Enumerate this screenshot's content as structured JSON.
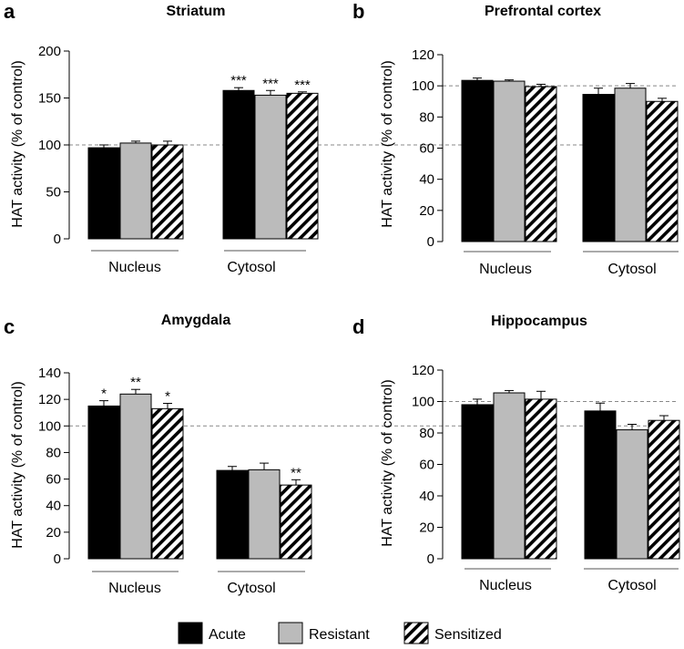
{
  "legend": {
    "items": [
      {
        "label": "Acute",
        "fill": "#000000",
        "pattern": false
      },
      {
        "label": "Resistant",
        "fill": "#bbbbbb",
        "pattern": false
      },
      {
        "label": "Sensitized",
        "fill": "#ffffff",
        "pattern": true
      }
    ]
  },
  "chart_data": [
    {
      "type": "bar",
      "letter": "a",
      "title": "Striatum",
      "ylabel": "HAT activity (% of control)",
      "ylim": [
        0,
        200
      ],
      "yticks": [
        0,
        50,
        100,
        150,
        200
      ],
      "reference_line": 100,
      "categories": [
        "Nucleus",
        "Cytosol"
      ],
      "series": [
        {
          "name": "Acute",
          "values": [
            97,
            158
          ],
          "errors": [
            3,
            3
          ],
          "sig": [
            "",
            "***"
          ]
        },
        {
          "name": "Resistant",
          "values": [
            102,
            153
          ],
          "errors": [
            2,
            5
          ],
          "sig": [
            "",
            "***"
          ]
        },
        {
          "name": "Sensitized",
          "values": [
            100,
            155
          ],
          "errors": [
            4,
            1.5
          ],
          "sig": [
            "",
            "***"
          ]
        }
      ]
    },
    {
      "type": "bar",
      "letter": "b",
      "title": "Prefrontal cortex",
      "ylabel": "HAT activity (% of control)",
      "ylim": [
        0,
        120
      ],
      "yticks": [
        0,
        20,
        40,
        60,
        80,
        100,
        120
      ],
      "reference_line": 100,
      "categories": [
        "Nucleus",
        "Cytosol"
      ],
      "series": [
        {
          "name": "Acute",
          "values": [
            103.5,
            94.5
          ],
          "errors": [
            1.5,
            4
          ],
          "sig": [
            "",
            ""
          ]
        },
        {
          "name": "Resistant",
          "values": [
            103,
            98.5
          ],
          "errors": [
            0.8,
            3
          ],
          "sig": [
            "",
            ""
          ]
        },
        {
          "name": "Sensitized",
          "values": [
            99.5,
            90
          ],
          "errors": [
            1.5,
            2
          ],
          "sig": [
            "",
            ""
          ]
        }
      ]
    },
    {
      "type": "bar",
      "letter": "c",
      "title": "Amygdala",
      "ylabel": "HAT activity (% of control)",
      "ylim": [
        0,
        140
      ],
      "yticks": [
        0,
        20,
        40,
        60,
        80,
        100,
        120,
        140
      ],
      "reference_line": 100,
      "categories": [
        "Nucleus",
        "Cytosol"
      ],
      "series": [
        {
          "name": "Acute",
          "values": [
            115,
            66.5
          ],
          "errors": [
            4,
            3
          ],
          "sig": [
            "*",
            ""
          ]
        },
        {
          "name": "Resistant",
          "values": [
            124,
            67
          ],
          "errors": [
            3.5,
            5
          ],
          "sig": [
            "**",
            ""
          ]
        },
        {
          "name": "Sensitized",
          "values": [
            113,
            55.5
          ],
          "errors": [
            4,
            4
          ],
          "sig": [
            "*",
            "**"
          ]
        }
      ]
    },
    {
      "type": "bar",
      "letter": "d",
      "title": "Hippocampus",
      "ylabel": "HAT activity (% of control)",
      "ylim": [
        0,
        120
      ],
      "yticks": [
        0,
        20,
        40,
        60,
        80,
        100,
        120
      ],
      "reference_line": 100,
      "categories": [
        "Nucleus",
        "Cytosol"
      ],
      "series": [
        {
          "name": "Acute",
          "values": [
            98,
            94
          ],
          "errors": [
            3.5,
            5
          ],
          "sig": [
            "",
            ""
          ]
        },
        {
          "name": "Resistant",
          "values": [
            105.5,
            82
          ],
          "errors": [
            1.5,
            3.5
          ],
          "sig": [
            "",
            ""
          ]
        },
        {
          "name": "Sensitized",
          "values": [
            101.5,
            88
          ],
          "errors": [
            5,
            3
          ],
          "sig": [
            "",
            ""
          ]
        }
      ]
    }
  ]
}
